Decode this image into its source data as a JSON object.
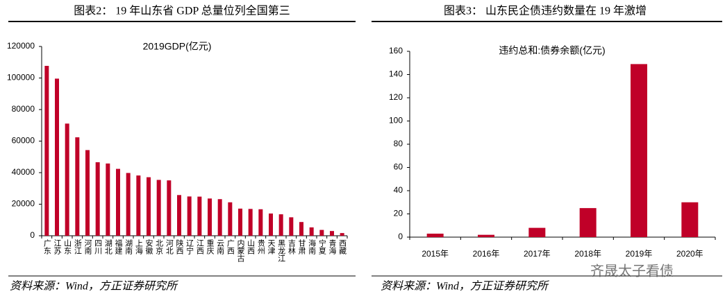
{
  "captions": [
    "图表2：  19 年山东省 GDP 总量位列全国第三",
    "图表3：  山东民企债违约数量在 19 年激增"
  ],
  "sources": [
    "资料来源：Wind，方正证券研究所",
    "资料来源：Wind，方正证券研究所"
  ],
  "watermark": "齐晟太子看债",
  "chart_data": [
    {
      "type": "bar",
      "title": "2019GDP(亿元)",
      "categories": [
        "广东",
        "江苏",
        "山东",
        "浙江",
        "河南",
        "四川",
        "湖北",
        "福建",
        "湖南",
        "上海",
        "安徽",
        "北京",
        "河北",
        "陕西",
        "辽宁",
        "江西",
        "重庆",
        "云南",
        "广西",
        "内蒙古",
        "山西",
        "贵州",
        "天津",
        "黑龙江",
        "吉林",
        "甘肃",
        "海南",
        "宁夏",
        "青海",
        "西藏"
      ],
      "values": [
        107700,
        99600,
        71100,
        62400,
        54300,
        46600,
        45800,
        42400,
        39800,
        38200,
        37100,
        35400,
        35100,
        25800,
        24900,
        24800,
        23600,
        23200,
        21200,
        17200,
        17000,
        16800,
        14100,
        13600,
        11700,
        8700,
        5300,
        3700,
        3000,
        1700
      ],
      "color": "#c00028",
      "ylim": [
        0,
        120000
      ],
      "yticks": [
        0,
        20000,
        40000,
        60000,
        80000,
        100000,
        120000
      ]
    },
    {
      "type": "bar",
      "title": "违约总和:债券余额(亿元)",
      "categories": [
        "2015年",
        "2016年",
        "2017年",
        "2018年",
        "2019年",
        "2020年"
      ],
      "values": [
        3,
        2,
        8,
        25,
        149,
        30
      ],
      "color": "#c00028",
      "ylim": [
        0,
        160
      ],
      "yticks": [
        0,
        20,
        40,
        60,
        80,
        100,
        120,
        140,
        160
      ]
    }
  ]
}
